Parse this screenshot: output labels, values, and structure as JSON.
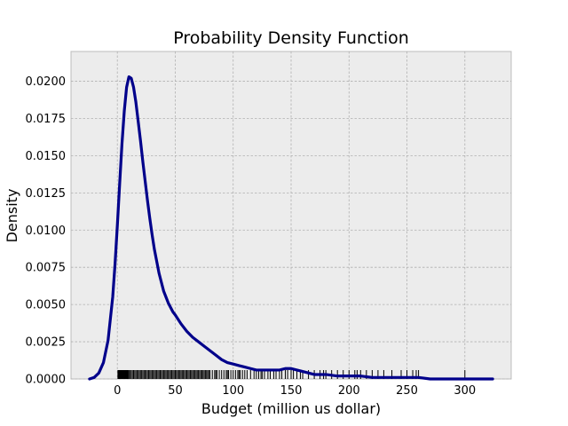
{
  "chart_data": {
    "type": "line",
    "title": "Probability Density Function",
    "xlabel": "Budget (million us dollar)",
    "ylabel": "Density",
    "xlim": [
      -40,
      340
    ],
    "ylim": [
      0,
      0.022
    ],
    "grid": true,
    "x_ticks": [
      0,
      50,
      100,
      150,
      200,
      250,
      300
    ],
    "x_tick_labels": [
      "0",
      "50",
      "100",
      "150",
      "200",
      "250",
      "300"
    ],
    "y_ticks": [
      0.0,
      0.0025,
      0.005,
      0.0075,
      0.01,
      0.0125,
      0.015,
      0.0175,
      0.02
    ],
    "y_tick_labels": [
      "0.0000",
      "0.0025",
      "0.0050",
      "0.0075",
      "0.0100",
      "0.0125",
      "0.0150",
      "0.0175",
      "0.0200"
    ],
    "series": [
      {
        "x": [
          -24,
          -20,
          -16,
          -12,
          -8,
          -4,
          -2,
          0,
          2,
          4,
          6,
          8,
          10,
          12,
          14,
          16,
          18,
          20,
          22,
          24,
          26,
          28,
          30,
          32,
          34,
          36,
          38,
          40,
          42,
          44,
          46,
          48,
          50,
          55,
          60,
          65,
          70,
          75,
          80,
          85,
          90,
          95,
          100,
          105,
          110,
          115,
          120,
          125,
          130,
          135,
          140,
          145,
          150,
          155,
          160,
          170,
          180,
          190,
          200,
          210,
          220,
          230,
          240,
          250,
          260,
          270,
          280,
          290,
          300,
          310,
          320,
          324
        ],
        "y": [
          0.0,
          0.0001,
          0.0004,
          0.0011,
          0.0026,
          0.0055,
          0.0077,
          0.0103,
          0.0131,
          0.0158,
          0.018,
          0.0196,
          0.0203,
          0.0202,
          0.0196,
          0.0186,
          0.0173,
          0.016,
          0.0146,
          0.0133,
          0.012,
          0.0108,
          0.0097,
          0.0087,
          0.0079,
          0.0071,
          0.0065,
          0.0059,
          0.0055,
          0.0051,
          0.0048,
          0.0045,
          0.0043,
          0.0037,
          0.0032,
          0.0028,
          0.0025,
          0.0022,
          0.0019,
          0.0016,
          0.0013,
          0.0011,
          0.001,
          0.0009,
          0.0008,
          0.0007,
          0.0006,
          0.0006,
          0.0006,
          0.0006,
          0.0006,
          0.0007,
          0.0007,
          0.0006,
          0.0005,
          0.0003,
          0.0003,
          0.0002,
          0.0002,
          0.0002,
          0.0001,
          0.0001,
          0.0001,
          0.0001,
          0.0001,
          0.0,
          0.0,
          0.0,
          0.0,
          0.0,
          0.0,
          0.0
        ],
        "color": "#00008b"
      }
    ],
    "rug": {
      "color": "#000000",
      "values": [
        0.5,
        1,
        1.5,
        2,
        2.5,
        3,
        3.5,
        4,
        4.5,
        5,
        5.5,
        6,
        6.5,
        7,
        7.5,
        8,
        8.5,
        9,
        9.5,
        10,
        11,
        12,
        13,
        14,
        15,
        16,
        17,
        18,
        19,
        20,
        21,
        22,
        23,
        24,
        25,
        26,
        27,
        28,
        29,
        30,
        31,
        32,
        33,
        34,
        35,
        36,
        37,
        38,
        39,
        40,
        41,
        42,
        43,
        44,
        45,
        46,
        47,
        48,
        49,
        50,
        51,
        52,
        53,
        54,
        55,
        56,
        57,
        58,
        59,
        60,
        61,
        62,
        63,
        64,
        65,
        66,
        67,
        68,
        69,
        70,
        71,
        72,
        73,
        74,
        75,
        76,
        77,
        78,
        79,
        80,
        82,
        84,
        85,
        86,
        88,
        90,
        92,
        94,
        95,
        96,
        98,
        100,
        102,
        104,
        105,
        106,
        108,
        110,
        112,
        115,
        118,
        120,
        122,
        124,
        125,
        127,
        130,
        132,
        135,
        137,
        140,
        142,
        145,
        147,
        150,
        152,
        155,
        158,
        160,
        165,
        170,
        175,
        178,
        180,
        185,
        190,
        195,
        200,
        205,
        207,
        210,
        215,
        220,
        225,
        230,
        237,
        245,
        250,
        255,
        258,
        260,
        300
      ]
    }
  }
}
